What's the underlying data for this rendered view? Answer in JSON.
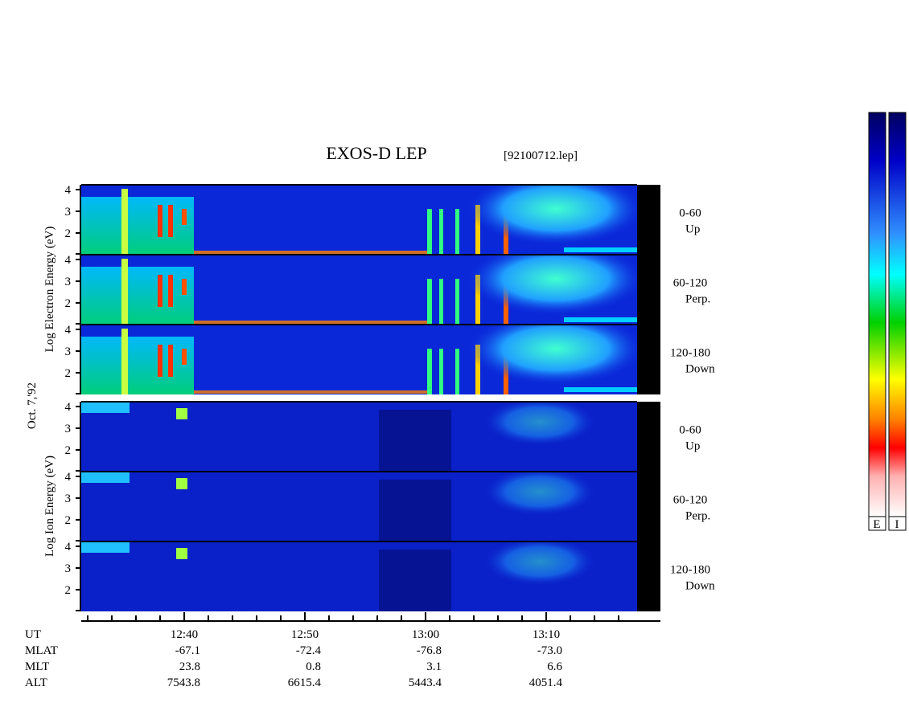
{
  "header": {
    "title": "EXOS-D LEP",
    "file": "[92100712.lep]"
  },
  "date": "Oct. 7,'92",
  "electron_axis_label": "Log Electron Energy (eV)",
  "ion_axis_label": "Log Ion Energy (eV)",
  "panels": [
    {
      "range": "0-60",
      "direction": "Up"
    },
    {
      "range": "60-120",
      "direction": "Perp."
    },
    {
      "range": "120-180",
      "direction": "Down"
    }
  ],
  "yticks": [
    "2",
    "3",
    "4"
  ],
  "time_ticks": [
    "12:40",
    "12:50",
    "13:00",
    "13:10"
  ],
  "ephemeris": {
    "labels": [
      "UT",
      "MLAT",
      "MLT",
      "ALT"
    ],
    "columns": [
      [
        "-67.1",
        "23.8",
        "7543.8"
      ],
      [
        "-72.4",
        "0.8",
        "6615.4"
      ],
      [
        "-76.8",
        "3.1",
        "5443.4"
      ],
      [
        "-73.0",
        "6.6",
        "4051.4"
      ]
    ]
  },
  "colorbar_labels": [
    "E",
    "I"
  ]
}
